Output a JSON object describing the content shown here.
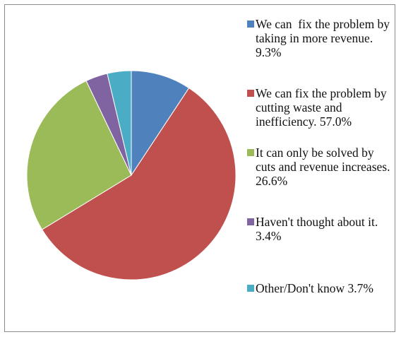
{
  "chart_data": {
    "type": "pie",
    "title": "",
    "start_angle_deg": 0,
    "direction": "clockwise",
    "legend_position": "right",
    "slices": [
      {
        "label": "We can  fix the problem by taking in more revenue. 9.3%",
        "value": 9.3,
        "color": "#4f81bd"
      },
      {
        "label": "We can fix the problem by cutting waste and inefficiency. 57.0%",
        "value": 57.0,
        "color": "#c0504d"
      },
      {
        "label": "It can only be solved by cuts and revenue increases. 26.6%",
        "value": 26.6,
        "color": "#9bbb59"
      },
      {
        "label": "Haven't thought about it. 3.4%",
        "value": 3.4,
        "color": "#8064a2"
      },
      {
        "label": "Other/Don't know 3.7%",
        "value": 3.7,
        "color": "#4bacc6"
      }
    ]
  }
}
